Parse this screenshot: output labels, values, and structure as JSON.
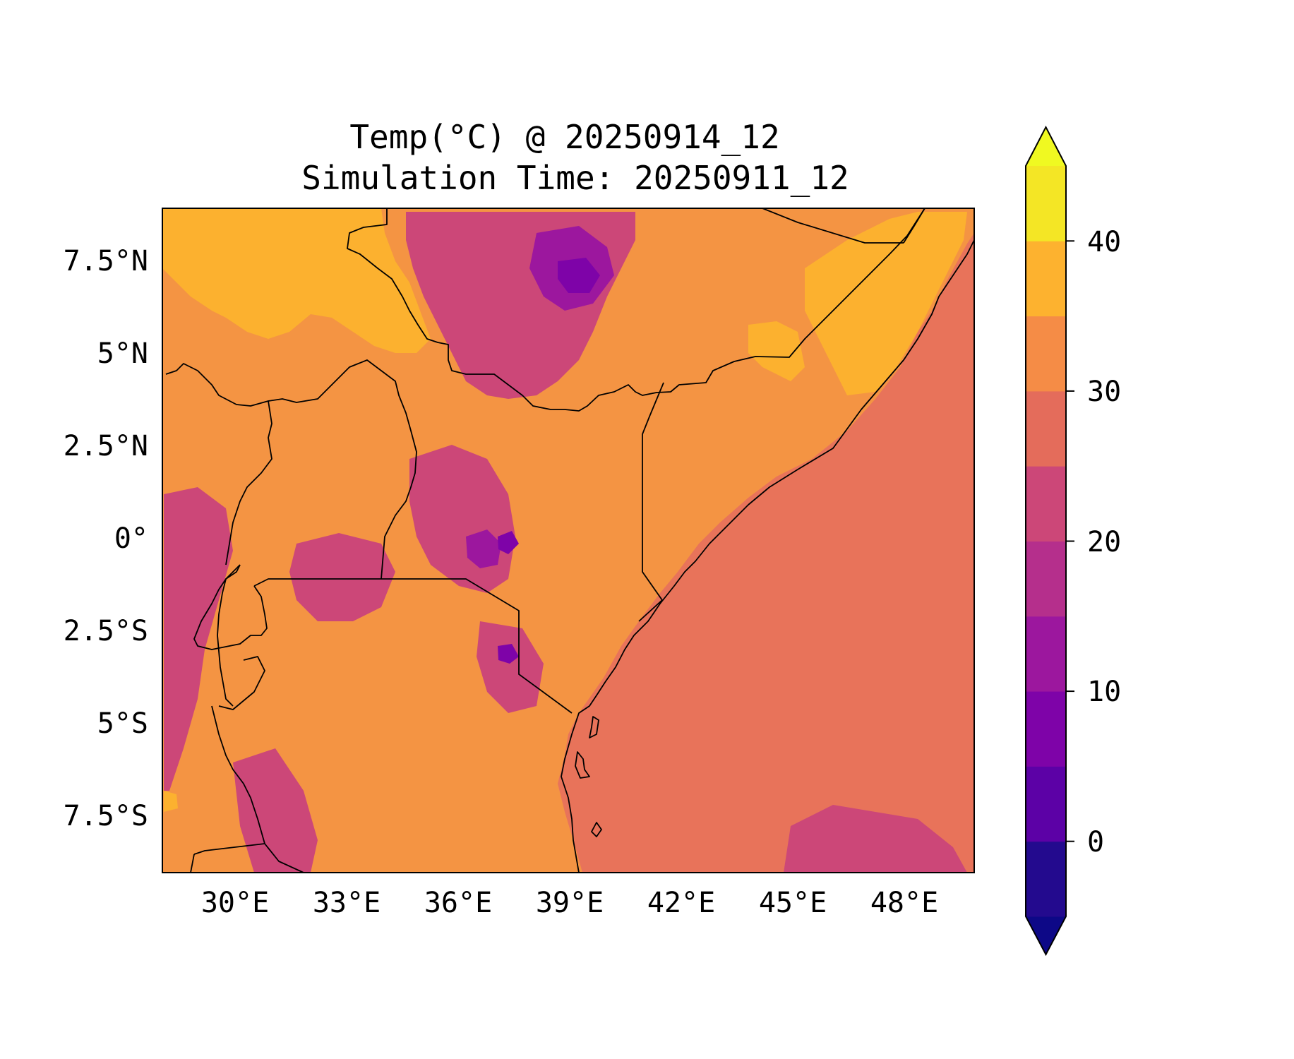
{
  "title": {
    "line1": "Temp(°C) @ 20250914_12",
    "line2": "Simulation Time: 20250911_12"
  },
  "map": {
    "lon_ticks": [
      "30°E",
      "33°E",
      "36°E",
      "39°E",
      "42°E",
      "45°E",
      "48°E"
    ],
    "lat_ticks": [
      "7.5°N",
      "5°N",
      "2.5°N",
      "0°",
      "2.5°S",
      "5°S",
      "7.5°S"
    ]
  },
  "colorbar": {
    "tick_labels": [
      "40",
      "30",
      "20",
      "10",
      "0"
    ],
    "levels": [
      -5,
      0,
      5,
      10,
      15,
      20,
      25,
      30,
      35,
      40,
      45
    ],
    "colors": [
      "#0d0887",
      "#230a8e",
      "#5c01a6",
      "#7e03a8",
      "#9c179e",
      "#b52f8c",
      "#cc4778",
      "#e46c5b",
      "#f58c46",
      "#fdb22f",
      "#f4e625",
      "#f0f921"
    ]
  }
}
